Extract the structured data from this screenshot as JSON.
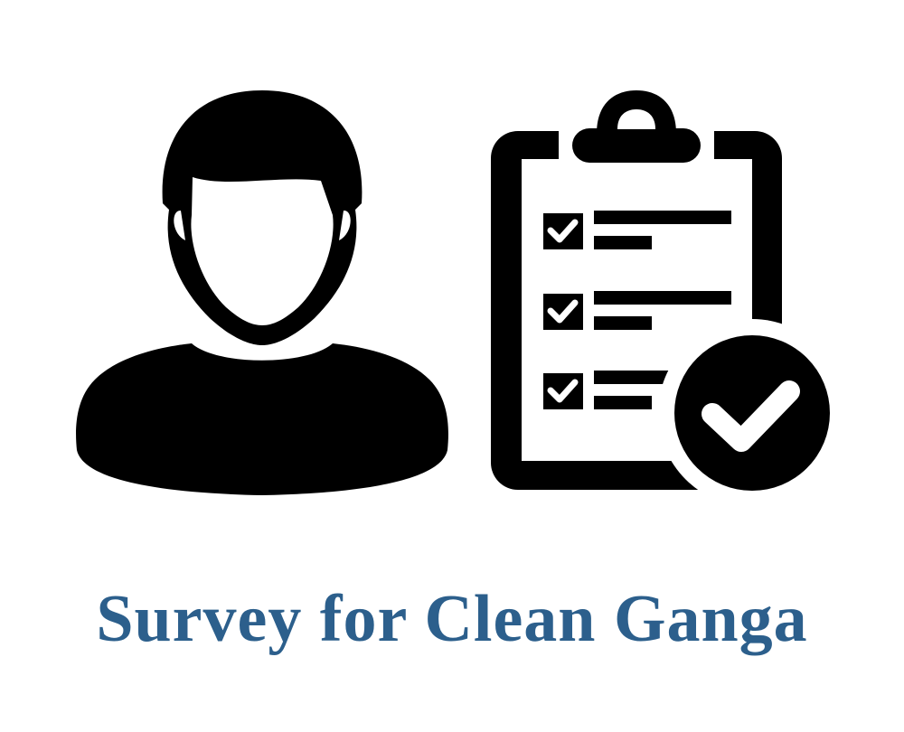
{
  "title": "Survey for Clean Ganga",
  "colors": {
    "title": "#2c5f8c",
    "icon": "#000000",
    "background": "#ffffff"
  },
  "icons": {
    "person": "person-silhouette-icon",
    "clipboard": "clipboard-checklist-icon",
    "badge": "check-circle-icon"
  },
  "checklist": {
    "items_checked": [
      true,
      true,
      true
    ]
  }
}
